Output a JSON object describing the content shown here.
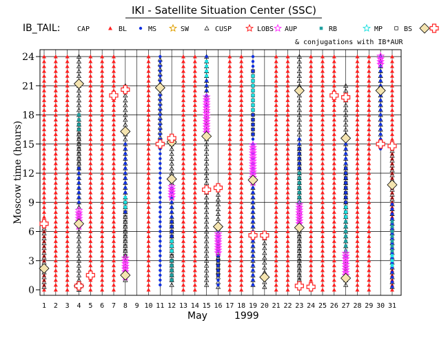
{
  "chart_data": {
    "type": "scatter",
    "title": "IKI - Satellite Situation Center (SSC)",
    "satellite_label": "IB_TAIL:",
    "conjunction_note": "& conjugations with IB*AUR",
    "xlabel_month": "May",
    "xlabel_year": "1999",
    "ylabel": "Moscow time (hours)",
    "xlim": [
      1,
      31
    ],
    "ylim": [
      0,
      24
    ],
    "x_ticks": [
      1,
      2,
      3,
      4,
      5,
      6,
      7,
      8,
      9,
      10,
      11,
      12,
      13,
      14,
      15,
      16,
      17,
      18,
      19,
      20,
      21,
      22,
      23,
      24,
      25,
      26,
      27,
      28,
      29,
      30,
      31
    ],
    "y_ticks": [
      0,
      3,
      6,
      9,
      12,
      15,
      18,
      21,
      24
    ],
    "legend": [
      {
        "label": "CAP",
        "marker": "triangle",
        "color": "#ff2020"
      },
      {
        "label": "BL",
        "marker": "dot",
        "color": "#1030e0"
      },
      {
        "label": "MS",
        "marker": "star",
        "color": "#e0a000"
      },
      {
        "label": "SW",
        "marker": "triangle-open",
        "color": "#000000"
      },
      {
        "label": "CUSP",
        "marker": "star",
        "color": "#ff2020"
      },
      {
        "label": "LOBS",
        "marker": "star",
        "color": "#ff30ff"
      },
      {
        "label": "AUP",
        "marker": "square",
        "color": "#20a0a0"
      },
      {
        "label": "RB",
        "marker": "star",
        "color": "#20e0e0"
      },
      {
        "label": "MP",
        "marker": "square-open",
        "color": "#000000"
      },
      {
        "label": "BS",
        "marker": "diamond",
        "color": "#000000"
      },
      {
        "label": "",
        "marker": "cross",
        "color": "#ff2020"
      }
    ],
    "colors": {
      "cap": "#ff2020",
      "bl": "#1030e0",
      "sw": "#000000",
      "lobs": "#ff30ff",
      "aup": "#20a0a0",
      "rb": "#20e0e0",
      "mp": "#000000",
      "bs": "#000000",
      "bs_fill": "#f4e4b0",
      "cross": "#ff2020"
    },
    "cap_days": [
      1,
      2,
      3,
      5,
      6,
      7,
      10,
      13,
      14,
      17,
      18,
      21,
      22,
      24,
      25,
      26,
      28,
      29,
      31
    ],
    "passes": [
      {
        "day": 1,
        "segments": [
          {
            "region": "SW",
            "y0": 0.3,
            "y1": 6.6
          },
          {
            "region": "BS",
            "y0": 2.2,
            "y1": 2.2
          }
        ]
      },
      {
        "day": 4,
        "segments": [
          {
            "region": "SW",
            "y0": 0.0,
            "y1": 24.0
          },
          {
            "region": "BL",
            "y0": 9.0,
            "y1": 12.5
          },
          {
            "region": "MP",
            "y0": 12.5,
            "y1": 17.0
          },
          {
            "region": "AUP",
            "y0": 16.5,
            "y1": 18.0
          },
          {
            "region": "LOBS",
            "y0": 6.5,
            "y1": 8.2
          },
          {
            "region": "BS",
            "y0": 21.2,
            "y1": 21.2
          },
          {
            "region": "BS",
            "y0": 6.8,
            "y1": 6.8
          },
          {
            "region": "BS",
            "y0": 0.4,
            "y1": 0.4
          }
        ]
      },
      {
        "day": 8,
        "segments": [
          {
            "region": "SW",
            "y0": 1.0,
            "y1": 21.0
          },
          {
            "region": "BL",
            "y0": 8.0,
            "y1": 15.0
          },
          {
            "region": "MP",
            "y0": 3.5,
            "y1": 9.0
          },
          {
            "region": "RB",
            "y0": 8.5,
            "y1": 9.5
          },
          {
            "region": "LOBS",
            "y0": 1.3,
            "y1": 3.3
          },
          {
            "region": "BS",
            "y0": 16.3,
            "y1": 16.3
          },
          {
            "region": "BS",
            "y0": 1.5,
            "y1": 1.5
          }
        ]
      },
      {
        "day": 11,
        "segments": [
          {
            "region": "BL",
            "y0": 0.5,
            "y1": 24.0
          },
          {
            "region": "SW",
            "y0": 15.2,
            "y1": 24.0
          },
          {
            "region": "BS",
            "y0": 20.8,
            "y1": 20.8
          }
        ]
      },
      {
        "day": 12,
        "segments": [
          {
            "region": "SW",
            "y0": 0.5,
            "y1": 15.8
          },
          {
            "region": "BL",
            "y0": 5.0,
            "y1": 10.5
          },
          {
            "region": "MP",
            "y0": 1.0,
            "y1": 7.0
          },
          {
            "region": "AUP",
            "y0": 1.0,
            "y1": 3.0
          },
          {
            "region": "RB",
            "y0": 4.0,
            "y1": 5.0
          },
          {
            "region": "LOBS",
            "y0": 9.5,
            "y1": 10.8
          },
          {
            "region": "BS",
            "y0": 11.4,
            "y1": 11.4
          },
          {
            "region": "BS",
            "y0": 15.2,
            "y1": 15.2
          }
        ]
      },
      {
        "day": 15,
        "segments": [
          {
            "region": "SW",
            "y0": 0.5,
            "y1": 24.0
          },
          {
            "region": "BL",
            "y0": 19.0,
            "y1": 24.0
          },
          {
            "region": "RB",
            "y0": 22.0,
            "y1": 23.8
          },
          {
            "region": "LOBS",
            "y0": 16.2,
            "y1": 20.0
          },
          {
            "region": "BS",
            "y0": 15.8,
            "y1": 15.8
          }
        ]
      },
      {
        "day": 16,
        "segments": [
          {
            "region": "SW",
            "y0": 0.3,
            "y1": 10.0
          },
          {
            "region": "BL",
            "y0": 0.5,
            "y1": 6.5
          },
          {
            "region": "MP",
            "y0": 1.5,
            "y1": 4.5
          },
          {
            "region": "LOBS",
            "y0": 3.8,
            "y1": 6.0
          },
          {
            "region": "BS",
            "y0": 6.5,
            "y1": 6.5
          }
        ]
      },
      {
        "day": 19,
        "segments": [
          {
            "region": "BL",
            "y0": 0.5,
            "y1": 24.0
          },
          {
            "region": "SW",
            "y0": 0.5,
            "y1": 11.0
          },
          {
            "region": "MP",
            "y0": 16.0,
            "y1": 22.5
          },
          {
            "region": "RB",
            "y0": 18.5,
            "y1": 22.0
          },
          {
            "region": "LOBS",
            "y0": 11.0,
            "y1": 15.0
          },
          {
            "region": "BS",
            "y0": 11.3,
            "y1": 11.3
          }
        ]
      },
      {
        "day": 20,
        "segments": [
          {
            "region": "SW",
            "y0": 0.3,
            "y1": 5.8
          },
          {
            "region": "BS",
            "y0": 1.3,
            "y1": 1.3
          }
        ]
      },
      {
        "day": 23,
        "segments": [
          {
            "region": "SW",
            "y0": 0.5,
            "y1": 24.0
          },
          {
            "region": "BL",
            "y0": 9.0,
            "y1": 15.5
          },
          {
            "region": "MP",
            "y0": 1.0,
            "y1": 14.5
          },
          {
            "region": "AUP",
            "y0": 9.0,
            "y1": 12.0
          },
          {
            "region": "LOBS",
            "y0": 6.8,
            "y1": 8.8
          },
          {
            "region": "BS",
            "y0": 20.5,
            "y1": 20.5
          },
          {
            "region": "BS",
            "y0": 6.4,
            "y1": 6.4
          }
        ]
      },
      {
        "day": 27,
        "segments": [
          {
            "region": "SW",
            "y0": 0.5,
            "y1": 21.0
          },
          {
            "region": "BL",
            "y0": 3.5,
            "y1": 15.5
          },
          {
            "region": "MP",
            "y0": 7.5,
            "y1": 12.5
          },
          {
            "region": "AUP",
            "y0": 3.5,
            "y1": 7.0
          },
          {
            "region": "RB",
            "y0": 7.5,
            "y1": 8.5
          },
          {
            "region": "LOBS",
            "y0": 1.5,
            "y1": 3.8
          },
          {
            "region": "BS",
            "y0": 15.6,
            "y1": 15.6
          },
          {
            "region": "BS",
            "y0": 1.2,
            "y1": 1.2
          }
        ]
      },
      {
        "day": 30,
        "segments": [
          {
            "region": "BL",
            "y0": 14.5,
            "y1": 24.0
          },
          {
            "region": "SW",
            "y0": 15.0,
            "y1": 24.0
          },
          {
            "region": "LOBS",
            "y0": 23.2,
            "y1": 24.2
          },
          {
            "region": "BS",
            "y0": 20.5,
            "y1": 20.5
          }
        ]
      },
      {
        "day": 31,
        "segments": [
          {
            "region": "SW",
            "y0": 0.3,
            "y1": 15.0
          },
          {
            "region": "BL",
            "y0": 0.3,
            "y1": 9.0
          },
          {
            "region": "AUP",
            "y0": 4.0,
            "y1": 7.0
          },
          {
            "region": "RB",
            "y0": 2.5,
            "y1": 3.5
          },
          {
            "region": "BS",
            "y0": 10.8,
            "y1": 10.8
          }
        ]
      }
    ],
    "conjunctions": [
      {
        "day": 1,
        "hour": 6.8
      },
      {
        "day": 4,
        "hour": 0.4
      },
      {
        "day": 5,
        "hour": 1.5
      },
      {
        "day": 7,
        "hour": 20.0
      },
      {
        "day": 8,
        "hour": 20.6
      },
      {
        "day": 11,
        "hour": 15.0
      },
      {
        "day": 12,
        "hour": 15.6
      },
      {
        "day": 15,
        "hour": 10.3
      },
      {
        "day": 16,
        "hour": 10.5
      },
      {
        "day": 19,
        "hour": 5.6
      },
      {
        "day": 20,
        "hour": 5.6
      },
      {
        "day": 23,
        "hour": 0.4
      },
      {
        "day": 24,
        "hour": 0.3
      },
      {
        "day": 26,
        "hour": 20.0
      },
      {
        "day": 27,
        "hour": 19.8
      },
      {
        "day": 30,
        "hour": 15.0
      },
      {
        "day": 31,
        "hour": 14.8
      }
    ]
  }
}
